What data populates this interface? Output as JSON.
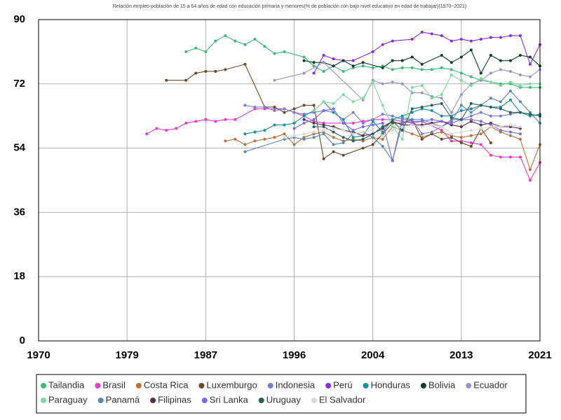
{
  "chart_data": {
    "type": "line",
    "title": "Relación empleo-población de 15 a 64 años de edad con educación primaria y menores(% de población con bajo nivel educativo en edad de trabajar)(1970~2021)",
    "xlim": [
      1970,
      2021
    ],
    "xticks": [
      1970,
      1979,
      1987,
      1996,
      2004,
      2013,
      2021
    ],
    "ylim": [
      0,
      90
    ],
    "yticks": [
      0,
      18,
      36,
      54,
      72,
      90
    ],
    "grid": true,
    "legend": "bottom",
    "series": [
      {
        "name": "Tailandia",
        "color": "#3cb878",
        "x": [
          1985,
          1986,
          1987,
          1988,
          1989,
          1990,
          1991,
          1992,
          1993,
          1994,
          1995,
          1997,
          1998,
          1999,
          2000,
          2001,
          2002,
          2003,
          2004,
          2005,
          2006,
          2007,
          2008,
          2009,
          2010,
          2011,
          2012,
          2013,
          2014,
          2015,
          2016,
          2017,
          2018,
          2019,
          2020,
          2021
        ],
        "values": [
          81,
          82,
          81,
          84,
          85.5,
          84,
          83,
          84.5,
          82.5,
          80.5,
          81,
          79.5,
          77,
          75.5,
          77,
          75.5,
          76.5,
          77,
          76.5,
          77,
          76,
          76.5,
          76.5,
          76,
          76,
          76.5,
          76,
          75,
          74,
          73,
          72.5,
          72,
          72,
          71,
          71,
          71
        ]
      },
      {
        "name": "Brasil",
        "color": "#e83ad0",
        "x": [
          1981,
          1982,
          1983,
          1984,
          1985,
          1986,
          1987,
          1988,
          1989,
          1990,
          1992,
          1993,
          1995,
          1996,
          1997,
          1998,
          1999,
          2001,
          2002,
          2003,
          2004,
          2005,
          2006,
          2007,
          2008,
          2009,
          2011,
          2012,
          2013,
          2014,
          2015,
          2016,
          2017,
          2018,
          2019,
          2020,
          2021
        ],
        "values": [
          58,
          59.5,
          59,
          59.5,
          61,
          61.5,
          62,
          61.5,
          62,
          62,
          65,
          65,
          65,
          64,
          63,
          61.5,
          61,
          61,
          61,
          61.5,
          62,
          62,
          62,
          61.5,
          61,
          61.5,
          59,
          56,
          56,
          55.5,
          55,
          52,
          51.5,
          51.5,
          51.5,
          45,
          50
        ]
      },
      {
        "name": "Costa Rica",
        "color": "#b8743e",
        "x": [
          1989,
          1990,
          1991,
          1992,
          1993,
          1994,
          1995,
          1996,
          1997,
          1998,
          1999,
          2000,
          2001,
          2002,
          2003,
          2004,
          2005,
          2006,
          2007,
          2008,
          2009,
          2010,
          2011,
          2012,
          2013,
          2014,
          2015,
          2016,
          2017,
          2018,
          2019,
          2020,
          2021
        ],
        "values": [
          56,
          56.5,
          55,
          56,
          56.5,
          57,
          58,
          55,
          57,
          58,
          58.5,
          57,
          56,
          56.5,
          56,
          57,
          56.5,
          60,
          59,
          58,
          57,
          58,
          58.5,
          57.5,
          57,
          57.5,
          58,
          60,
          58.5,
          57.5,
          56.5,
          48,
          55
        ]
      },
      {
        "name": "Luxemburgo",
        "color": "#6b4a2b",
        "x": [
          1983,
          1985,
          1986,
          1987,
          1988,
          1989,
          1991,
          1993,
          1994,
          1995,
          1996,
          1997,
          1998,
          1999,
          2000,
          2001,
          2003,
          2004,
          2005,
          2006,
          2007,
          2008,
          2009,
          2010,
          2011,
          2012,
          2013,
          2014,
          2015,
          2016
        ],
        "values": [
          73,
          73,
          75,
          75.5,
          75.5,
          76,
          77.5,
          65.5,
          65.5,
          64,
          65,
          66,
          66,
          51,
          53,
          52,
          54,
          55,
          58,
          61,
          61,
          62,
          56.5,
          58,
          56.5,
          57,
          55.5,
          54.5,
          59.5,
          55.5
        ]
      },
      {
        "name": "Indonesia",
        "color": "#7b7bd1",
        "x": [
          1991,
          1992,
          1993,
          1994,
          1995,
          1996,
          1997,
          1998,
          1999,
          2000,
          2001,
          2002,
          2003,
          2004,
          2005,
          2006,
          2007,
          2008,
          2009,
          2010,
          2011,
          2012,
          2013,
          2014,
          2015,
          2016,
          2017,
          2018,
          2019
        ],
        "values": [
          66,
          65.5,
          65.5,
          64.5,
          65,
          64,
          63.5,
          64,
          64.5,
          64,
          62,
          64,
          61,
          62,
          63.5,
          63,
          62,
          62,
          58,
          58.5,
          60,
          62,
          62,
          63,
          64,
          63,
          63,
          63.5,
          64
        ]
      },
      {
        "name": "Perú",
        "color": "#8a2be2",
        "x": [
          1998,
          1999,
          2000,
          2001,
          2002,
          2004,
          2005,
          2006,
          2008,
          2009,
          2010,
          2011,
          2012,
          2013,
          2014,
          2015,
          2016,
          2017,
          2018,
          2019,
          2020,
          2021
        ],
        "values": [
          75,
          80,
          79,
          78.5,
          78.5,
          81,
          83,
          84,
          84.5,
          86.5,
          86,
          85.5,
          84,
          84.5,
          84,
          84.5,
          85,
          85,
          85.5,
          85.5,
          77.5,
          83
        ]
      },
      {
        "name": "Honduras",
        "color": "#1a8fa0",
        "x": [
          1991,
          1992,
          1993,
          1994,
          1995,
          1996,
          1997,
          1998,
          1999,
          2000,
          2001,
          2002,
          2003,
          2004,
          2005,
          2006,
          2007,
          2008,
          2009,
          2010,
          2011,
          2012,
          2013,
          2014,
          2015,
          2016,
          2017,
          2018,
          2019,
          2020,
          2021
        ],
        "values": [
          58,
          58.5,
          59,
          60.5,
          60.5,
          61,
          63,
          64.5,
          67,
          64,
          62,
          57,
          57.5,
          61.5,
          58.5,
          62,
          63,
          64,
          65,
          64.5,
          63,
          63,
          64.5,
          65,
          66,
          65.5,
          65.5,
          67.5,
          64,
          63,
          63.5
        ]
      },
      {
        "name": "Bolivia",
        "color": "#0f3d2e",
        "x": [
          1997,
          1998,
          1999,
          2000,
          2001,
          2002,
          2003,
          2005,
          2006,
          2007,
          2008,
          2009,
          2011,
          2012,
          2013,
          2014,
          2015,
          2016,
          2017,
          2018,
          2019,
          2020,
          2021
        ],
        "values": [
          78.5,
          78,
          78,
          77,
          78.5,
          77,
          78,
          76.5,
          78.5,
          78.5,
          79.5,
          77.5,
          80,
          78,
          79.5,
          81.5,
          75,
          80,
          78.5,
          78.5,
          80,
          79.5,
          77
        ]
      },
      {
        "name": "Ecuador",
        "color": "#9c93c5",
        "x": [
          1994,
          1997,
          1999,
          2003,
          2004,
          2005,
          2006,
          2007,
          2008,
          2009,
          2010,
          2011,
          2012,
          2013,
          2014,
          2015,
          2016,
          2017,
          2018,
          2019,
          2020,
          2021
        ],
        "values": [
          73,
          75,
          78,
          67.5,
          73,
          72,
          72.5,
          72,
          69.5,
          69.5,
          68.5,
          68,
          64,
          69,
          72,
          73,
          75,
          76,
          75.5,
          74.5,
          74,
          76
        ]
      },
      {
        "name": "Paraguay",
        "color": "#7fd9a0",
        "x": [
          1998,
          1999,
          2000,
          2001,
          2002,
          2003,
          2004,
          2005,
          2006,
          2007,
          2008,
          2009,
          2010,
          2011,
          2012,
          2013,
          2014,
          2015,
          2016,
          2017,
          2018,
          2019,
          2020,
          2021
        ],
        "values": [
          64.5,
          67,
          66.5,
          69,
          67,
          68,
          72.5,
          66,
          60,
          56.5,
          71,
          71.5,
          68,
          69,
          74.5,
          73,
          71.5,
          73.5,
          72.5,
          71.5,
          72.5,
          71.5,
          72,
          72
        ]
      },
      {
        "name": "Panamá",
        "color": "#5b88b0",
        "x": [
          1991,
          1995,
          1996,
          1997,
          1998,
          1999,
          2000,
          2001,
          2002,
          2003,
          2004,
          2005,
          2006,
          2007,
          2008,
          2009,
          2010,
          2011,
          2012,
          2013,
          2014,
          2015,
          2016,
          2017,
          2018,
          2019,
          2020,
          2021
        ],
        "values": [
          53,
          56.5,
          57,
          56.5,
          57,
          58,
          55,
          55.5,
          58,
          58.5,
          57,
          54.5,
          50.5,
          62.5,
          62,
          62,
          61,
          60,
          61.5,
          66,
          64,
          66,
          68,
          67,
          70,
          67,
          64,
          61
        ]
      },
      {
        "name": "Filipinas",
        "color": "#5a2d4d",
        "x": [
          1997,
          1998,
          1999,
          2000,
          2001,
          2002,
          2003,
          2004,
          2005,
          2006,
          2007,
          2008,
          2009,
          2010,
          2011,
          2012,
          2013,
          2014,
          2015,
          2016,
          2017,
          2018,
          2019
        ],
        "values": [
          62,
          61,
          60.5,
          60,
          59,
          58.5,
          57.5,
          58,
          59.5,
          61.5,
          60.5,
          60.5,
          60.5,
          61,
          61.5,
          60.5,
          60,
          61.5,
          60.5,
          61,
          60,
          60,
          59.5
        ]
      },
      {
        "name": "Sri Lanka",
        "color": "#7b68ee",
        "x": [
          1996,
          1997,
          1998,
          1999,
          2000,
          2001,
          2002,
          2003,
          2004,
          2005,
          2006,
          2007,
          2008,
          2009,
          2010,
          2011,
          2012,
          2013,
          2014,
          2015,
          2016,
          2017,
          2018,
          2019
        ],
        "values": [
          59.5,
          61,
          62,
          64.5,
          65,
          61,
          59,
          60,
          60.5,
          61,
          50.5,
          61,
          61.5,
          61.5,
          62,
          61.5,
          61,
          62,
          62,
          61.5,
          60.5,
          59,
          58.5,
          58
        ]
      },
      {
        "name": "Uruguay",
        "color": "#276158",
        "x": [
          1998,
          1999,
          2000,
          2001,
          2002,
          2003,
          2004,
          2005,
          2006,
          2007,
          2008,
          2009,
          2010,
          2011,
          2012,
          2013,
          2014,
          2015,
          2016,
          2017,
          2018,
          2019,
          2020,
          2021
        ],
        "values": [
          60,
          60,
          58.5,
          57,
          56,
          56.5,
          58,
          60,
          61.5,
          59,
          65,
          65.5,
          66,
          66.5,
          62.5,
          62,
          66.5,
          66,
          65.5,
          65,
          64,
          64,
          63.5,
          63
        ]
      },
      {
        "name": "El Salvador",
        "color": "#d8d8d8",
        "x": [
          1995,
          1996,
          1997,
          1998,
          1999,
          2000,
          2001,
          2002,
          2003,
          2004,
          2005,
          2006,
          2007,
          2008,
          2009,
          2010,
          2011,
          2012,
          2013,
          2014,
          2015,
          2016,
          2017,
          2018,
          2019
        ],
        "values": [
          57,
          57.5,
          58,
          58.5,
          59,
          59.5,
          59,
          58,
          58.5,
          59,
          57.5,
          59,
          60,
          60.5,
          60,
          60.5,
          60,
          58,
          58.5,
          59,
          59.5,
          60,
          60,
          60.5,
          60
        ]
      }
    ]
  }
}
